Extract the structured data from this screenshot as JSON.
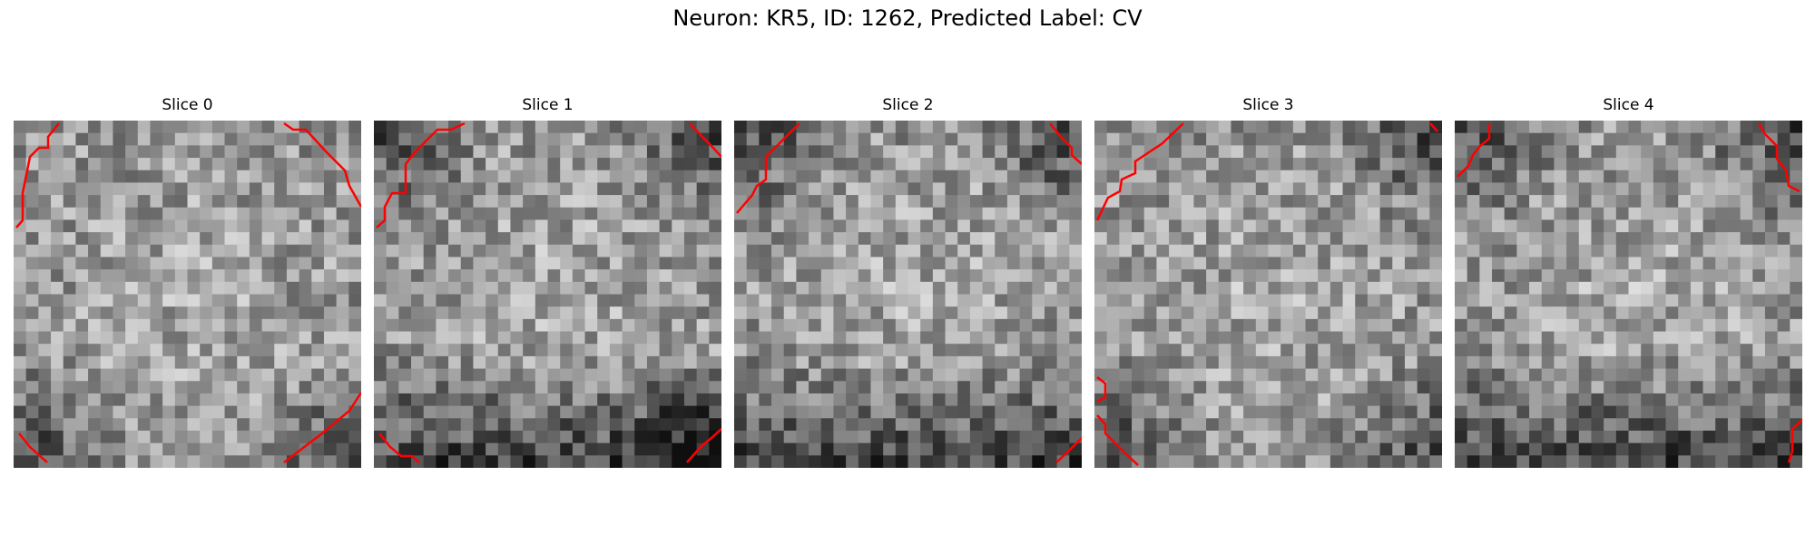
{
  "figure": {
    "title": "Neuron: KR5, ID: 1262, Predicted Label: CV",
    "contour_color": "#ff0000"
  },
  "slices": [
    {
      "title": "Slice 0",
      "seed": 11,
      "dark": [
        [
          "l",
          "b"
        ],
        [
          "r",
          "b"
        ]
      ]
    },
    {
      "title": "Slice 1",
      "seed": 23,
      "dark": [
        [
          "l",
          "t"
        ],
        [
          "r",
          "t"
        ],
        [
          "r",
          "b"
        ],
        [
          "b",
          "b"
        ]
      ]
    },
    {
      "title": "Slice 2",
      "seed": 37,
      "dark": [
        [
          "b",
          "b"
        ],
        [
          "r",
          "t"
        ],
        [
          "l",
          "t"
        ]
      ]
    },
    {
      "title": "Slice 3",
      "seed": 53,
      "dark": [
        [
          "l",
          "b"
        ],
        [
          "r",
          "t"
        ],
        [
          "r",
          "b"
        ]
      ]
    },
    {
      "title": "Slice 4",
      "seed": 71,
      "dark": [
        [
          "l",
          "t"
        ],
        [
          "b",
          "b"
        ],
        [
          "r",
          "t"
        ]
      ]
    }
  ]
}
